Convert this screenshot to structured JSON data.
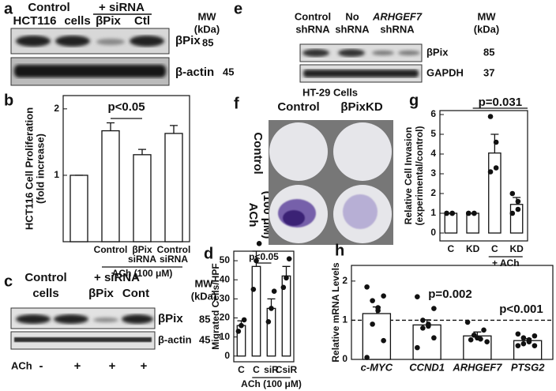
{
  "blots": {
    "a": {
      "letter": "a",
      "group1": "Control",
      "group2": "+ siRNA",
      "lanes": [
        "HCT116",
        "cells",
        "βPix",
        "Ctl"
      ],
      "mw": "MW",
      "mw_unit": "(kDa)",
      "rows": [
        {
          "name": "βPix",
          "mw": 85
        },
        {
          "name": "β-actin",
          "mw": 45
        }
      ]
    },
    "c": {
      "letter": "c",
      "group1": [
        "Control",
        "cells"
      ],
      "group2": "+ siRNA",
      "lanes": [
        "βPix",
        "Cont"
      ],
      "mw": "MW",
      "mw_unit": "(kDa)",
      "rows": [
        {
          "name": "βPix",
          "mw": 85
        },
        {
          "name": "β-actin",
          "mw": 45
        }
      ],
      "treatment": "ACh",
      "treatment_signs": [
        "-",
        "+",
        "+",
        "+"
      ]
    },
    "e": {
      "letter": "e",
      "lanes": [
        [
          "Control",
          "shRNA"
        ],
        [
          "No",
          "shRNA"
        ],
        [
          "ARHGEF7",
          "shRNA"
        ]
      ],
      "mw": "MW",
      "mw_unit": "(kDa)",
      "rows": [
        {
          "name": "βPix",
          "mw": 85
        },
        {
          "name": "GAPDH",
          "mw": 37
        }
      ]
    }
  },
  "colony": {
    "letter": "f",
    "title": "HT-29 Cells",
    "columns": [
      "Control",
      "βPixKD"
    ],
    "rows": [
      "Control",
      "ACh"
    ],
    "row_note": "(100 μM)"
  },
  "chart_data": [
    {
      "type": "bar",
      "letter": "b",
      "ylabel": [
        "HCT116 Cell Proliferation",
        "(fold increase)"
      ],
      "categories": [
        null,
        [
          "Control"
        ],
        [
          "βPix",
          "siRNA"
        ],
        [
          "Control",
          "siRNA"
        ]
      ],
      "values": [
        1,
        1.67,
        1.31,
        1.63
      ],
      "errors": [
        0,
        0.12,
        0.08,
        0.12
      ],
      "ylim": [
        0,
        2.2
      ],
      "yticks": [
        1,
        2
      ],
      "annotations": [
        "p<0.05"
      ],
      "group_label": "ACh (100 μM)"
    },
    {
      "type": "bar",
      "letter": "d",
      "ylabel": [
        "Migrated Cells/HPF"
      ],
      "categories": [
        [
          "C"
        ],
        [
          "C"
        ],
        [
          "siR"
        ],
        [
          "CsiR"
        ]
      ],
      "values": [
        16,
        47,
        25,
        42
      ],
      "errors": [
        2.5,
        8,
        5,
        5
      ],
      "points": [
        [
          13,
          16,
          19
        ],
        [
          35,
          50,
          59
        ],
        [
          18,
          25,
          34
        ],
        [
          36,
          41,
          51
        ]
      ],
      "ylim": [
        -3,
        55
      ],
      "yticks": [
        0,
        10,
        20,
        30,
        40,
        50
      ],
      "annotations": [
        "p<0.05"
      ],
      "group_label": "ACh (100 μM)"
    },
    {
      "type": "bar",
      "letter": "g",
      "ylabel": [
        "Relative Cell Invasion",
        "(experimental/control)"
      ],
      "categories": [
        [
          "C"
        ],
        [
          "KD"
        ],
        [
          "C"
        ],
        [
          "KD"
        ]
      ],
      "values": [
        1,
        1,
        4.05,
        1.45
      ],
      "errors": [
        0,
        0,
        0.95,
        0.35
      ],
      "points": [
        [
          1,
          1,
          1,
          1
        ],
        [
          1,
          1,
          1,
          1
        ],
        [
          5.9,
          4.6,
          3.3,
          3.1
        ],
        [
          2.0,
          1.6,
          1.2,
          1.0
        ]
      ],
      "ylim": [
        -0.4,
        6.2
      ],
      "yticks": [
        0,
        1,
        2,
        3,
        4,
        5,
        6
      ],
      "annotations": [
        "p=0.031"
      ],
      "group_label": "+ ACh"
    },
    {
      "type": "bar",
      "letter": "h",
      "ylabel": [
        "Relative mRNA Levels"
      ],
      "categories": [
        [
          "c-MYC"
        ],
        [
          "CCND1"
        ],
        [
          "ARHGEF7"
        ],
        [
          "PTSG2"
        ]
      ],
      "values": [
        1.17,
        0.88,
        0.6,
        0.48
      ],
      "errors": [
        0.17,
        0.13,
        0.1,
        0.05
      ],
      "points": [
        [
          1.85,
          1.62,
          1.5,
          1.32,
          1.25,
          0.9,
          0.48,
          0.05
        ],
        [
          1.6,
          1.3,
          1.0,
          0.9,
          0.85,
          0.8,
          0.55,
          0.3
        ],
        [
          0.95,
          0.75,
          0.62,
          0.55,
          0.52,
          0.5,
          0.45
        ],
        [
          0.65,
          0.6,
          0.55,
          0.5,
          0.45,
          0.4,
          0.35,
          0.35
        ]
      ],
      "ylim": [
        0,
        2.4
      ],
      "yticks": [
        0,
        1,
        2
      ],
      "reference_line": 1,
      "annotations": [
        "p=0.002",
        "p<0.001"
      ],
      "italic_categories": true
    }
  ]
}
